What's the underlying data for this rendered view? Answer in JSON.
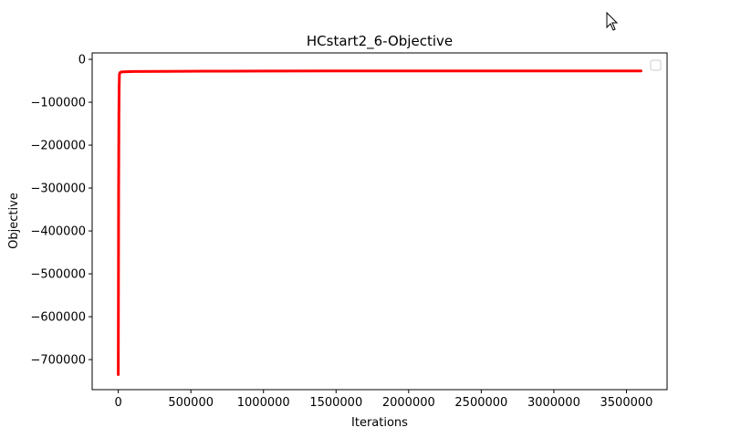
{
  "chart_data": {
    "type": "line",
    "title": "HCstart2_6-Objective",
    "xlabel": "Iterations",
    "ylabel": "Objective",
    "xlim": [
      -180000,
      3780000
    ],
    "ylim": [
      -770000,
      15000
    ],
    "xticks": [
      0,
      500000,
      1000000,
      1500000,
      2000000,
      2500000,
      3000000,
      3500000
    ],
    "xtick_labels": [
      "0",
      "500000",
      "1000000",
      "1500000",
      "2000000",
      "2500000",
      "3000000",
      "3500000"
    ],
    "yticks": [
      0,
      -100000,
      -200000,
      -300000,
      -400000,
      -500000,
      -600000,
      -700000
    ],
    "ytick_labels": [
      "0",
      "−100000",
      "−200000",
      "−300000",
      "−400000",
      "−500000",
      "−600000",
      "−700000"
    ],
    "grid": false,
    "legend": {
      "placement": "upper right",
      "entries": []
    },
    "series": [
      {
        "color": "#ff0000",
        "x": [
          0,
          2000,
          4000,
          6000,
          8000,
          12000,
          20000,
          50000,
          100000,
          300000,
          600000,
          1000000,
          1500000,
          2000000,
          2500000,
          3000000,
          3600000
        ],
        "y": [
          -735000,
          -300000,
          -130000,
          -60000,
          -35000,
          -31000,
          -29500,
          -28800,
          -28500,
          -28000,
          -27500,
          -27300,
          -27200,
          -27100,
          -27000,
          -27000,
          -27000
        ]
      }
    ]
  }
}
